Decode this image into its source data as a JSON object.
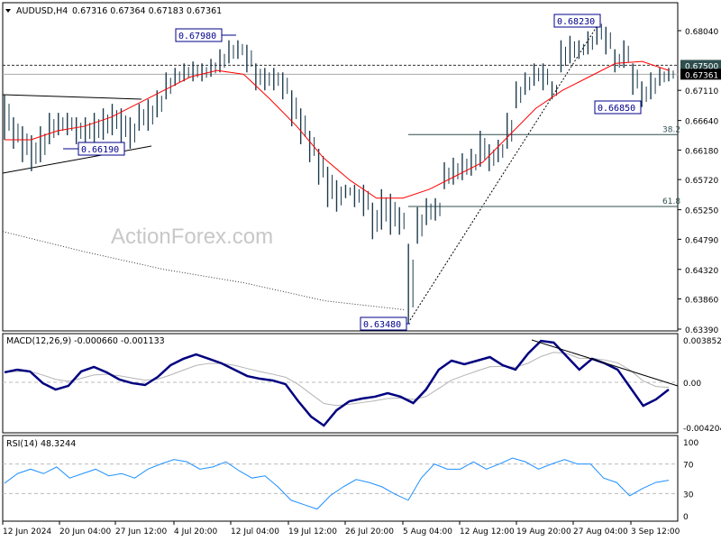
{
  "header": {
    "symbol": "AUDUSD,H4",
    "ohlc": "0.67316 0.67364 0.67183 0.67361"
  },
  "watermark": "ActionForex.com",
  "colors": {
    "bars": "#1c3b4d",
    "ma_fast": "#ff0000",
    "macd": "#000080",
    "signal": "#b4b4b4",
    "rsi": "#1e90ff",
    "label": "#00008b"
  },
  "chart_data": [
    {
      "type": "bar",
      "title": "AUDUSD,H4",
      "x_ticks": [
        "12 Jun 2024",
        "20 Jun 04:00",
        "27 Jun 12:00",
        "4 Jul 20:00",
        "12 Jul 04:00",
        "19 Jul 12:00",
        "26 Jul 20:00",
        "5 Aug 04:00",
        "12 Aug 12:00",
        "19 Aug 20:00",
        "27 Aug 04:00",
        "3 Sep 12:00"
      ],
      "y_ticks": [
        "0.68040",
        "0.67110",
        "0.66640",
        "0.66180",
        "0.65720",
        "0.65250",
        "0.64790",
        "0.64320",
        "0.63860",
        "0.63390"
      ],
      "ylim": [
        0.6339,
        0.6804
      ],
      "bars_high_low": [
        [
          0.6704,
          0.6634
        ],
        [
          0.6669,
          0.662
        ],
        [
          0.6655,
          0.6599
        ],
        [
          0.6641,
          0.6585
        ],
        [
          0.6655,
          0.6599
        ],
        [
          0.6676,
          0.6627
        ],
        [
          0.6676,
          0.6641
        ],
        [
          0.6676,
          0.6641
        ],
        [
          0.6669,
          0.6627
        ],
        [
          0.6669,
          0.6627
        ],
        [
          0.6676,
          0.6627
        ],
        [
          0.6683,
          0.6634
        ],
        [
          0.669,
          0.6641
        ],
        [
          0.6683,
          0.6627
        ],
        [
          0.6669,
          0.662
        ],
        [
          0.669,
          0.6648
        ],
        [
          0.6697,
          0.6648
        ],
        [
          0.6711,
          0.6669
        ],
        [
          0.6739,
          0.6697
        ],
        [
          0.6746,
          0.6718
        ],
        [
          0.6753,
          0.6725
        ],
        [
          0.6756,
          0.6725
        ],
        [
          0.6753,
          0.6725
        ],
        [
          0.676,
          0.6732
        ],
        [
          0.6775,
          0.6739
        ],
        [
          0.6789,
          0.6753
        ],
        [
          0.6789,
          0.676
        ],
        [
          0.6782,
          0.6739
        ],
        [
          0.6753,
          0.6711
        ],
        [
          0.6746,
          0.6711
        ],
        [
          0.6746,
          0.6711
        ],
        [
          0.6739,
          0.6697
        ],
        [
          0.6711,
          0.6655
        ],
        [
          0.6683,
          0.6627
        ],
        [
          0.6648,
          0.6599
        ],
        [
          0.662,
          0.6564
        ],
        [
          0.6592,
          0.6529
        ],
        [
          0.6571,
          0.6522
        ],
        [
          0.6564,
          0.6543
        ],
        [
          0.6564,
          0.6529
        ],
        [
          0.6564,
          0.6515
        ],
        [
          0.6536,
          0.6479
        ],
        [
          0.6557,
          0.6494
        ],
        [
          0.655,
          0.6486
        ],
        [
          0.6529,
          0.6486
        ],
        [
          0.6472,
          0.6348
        ],
        [
          0.6529,
          0.6472
        ],
        [
          0.6543,
          0.6501
        ],
        [
          0.6543,
          0.6508
        ],
        [
          0.6599,
          0.6557
        ],
        [
          0.6606,
          0.6564
        ],
        [
          0.6613,
          0.6571
        ],
        [
          0.662,
          0.6578
        ],
        [
          0.6648,
          0.6592
        ],
        [
          0.6627,
          0.6585
        ],
        [
          0.6634,
          0.6599
        ],
        [
          0.6676,
          0.662
        ],
        [
          0.6725,
          0.6683
        ],
        [
          0.6739,
          0.6704
        ],
        [
          0.6753,
          0.6718
        ],
        [
          0.6753,
          0.6711
        ],
        [
          0.6725,
          0.6697
        ],
        [
          0.6789,
          0.6739
        ],
        [
          0.6796,
          0.6753
        ],
        [
          0.6789,
          0.676
        ],
        [
          0.6803,
          0.6767
        ],
        [
          0.6823,
          0.6782
        ],
        [
          0.681,
          0.6767
        ],
        [
          0.6775,
          0.6739
        ],
        [
          0.6789,
          0.6746
        ],
        [
          0.6753,
          0.6704
        ],
        [
          0.6725,
          0.6685
        ],
        [
          0.6739,
          0.6697
        ],
        [
          0.6746,
          0.6718
        ],
        [
          0.6746,
          0.6725
        ]
      ],
      "ma_fast": [
        0.6634,
        0.6634,
        0.6648,
        0.6655,
        0.6669,
        0.669,
        0.6711,
        0.6732,
        0.6742,
        0.6736,
        0.6697,
        0.6655,
        0.6606,
        0.6571,
        0.6543,
        0.6543,
        0.6557,
        0.6578,
        0.6599,
        0.6641,
        0.6683,
        0.6711,
        0.6732,
        0.6753,
        0.6756,
        0.6742
      ],
      "ma_slow": [
        0.6491,
        0.646,
        0.6432,
        0.6411,
        0.6383,
        0.6369
      ],
      "price_labels": [
        "0.67980",
        "0.66190",
        "0.63480",
        "0.68230",
        "0.66850"
      ],
      "price_levels": {
        "dashed": "0.67500",
        "current": "0.67361"
      },
      "fibonacci": [
        {
          "level": "38.2",
          "price": 0.6642
        },
        {
          "level": "61.8",
          "price": 0.653
        }
      ]
    },
    {
      "type": "line",
      "title": "MACD(12,26,9) -0.000660 -0.001133",
      "y_ticks": [
        "0.003852",
        "0.00",
        "-0.004204"
      ],
      "ylim": [
        -0.004204,
        0.003852
      ],
      "macd": [
        0.00092,
        0.00117,
        0.001,
        -8e-05,
        -0.00067,
        -0.00033,
        0.001,
        0.00142,
        0.00092,
        0.00025,
        -8e-05,
        -0.00025,
        0.0005,
        0.00158,
        0.00217,
        0.00258,
        0.00217,
        0.00175,
        0.00117,
        0.00058,
        0.00033,
        0.00017,
        -0.00017,
        -0.00175,
        -0.00317,
        -0.004,
        -0.00258,
        -0.00175,
        -0.0015,
        -0.00133,
        -0.001,
        -0.00133,
        -0.00192,
        -0.00067,
        0.00117,
        0.002,
        0.00167,
        0.002,
        0.00233,
        0.00158,
        0.00117,
        0.00267,
        0.00383,
        0.00367,
        0.00242,
        0.00117,
        0.00217,
        0.00175,
        0.00117,
        -0.0005,
        -0.00217,
        -0.00158,
        -0.00067
      ]
    },
    {
      "type": "line",
      "title": "RSI(14) 48.3244",
      "y_ticks": [
        "100",
        "70",
        "30",
        "0"
      ],
      "ylim": [
        0,
        100
      ],
      "rsi": [
        44,
        57,
        63,
        57,
        66,
        51,
        57,
        63,
        54,
        57,
        51,
        63,
        70,
        76,
        73,
        63,
        66,
        73,
        61,
        51,
        54,
        39,
        21,
        15,
        9,
        27,
        39,
        49,
        45,
        39,
        29,
        21,
        51,
        70,
        63,
        63,
        73,
        63,
        70,
        78,
        73,
        63,
        70,
        76,
        70,
        70,
        51,
        45,
        27,
        37,
        45,
        48
      ]
    }
  ]
}
